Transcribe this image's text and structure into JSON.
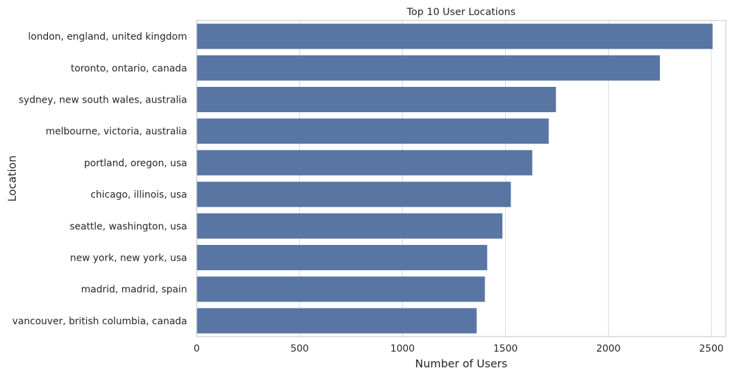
{
  "chart_data": {
    "type": "bar",
    "orientation": "horizontal",
    "title": "Top 10 User Locations",
    "xlabel": "Number of Users",
    "ylabel": "Location",
    "xlim": [
      0,
      2570
    ],
    "xticks": [
      0,
      500,
      1000,
      1500,
      2000,
      2500
    ],
    "grid": true,
    "bar_color": "#5875a4",
    "categories": [
      "london, england, united kingdom",
      "toronto, ontario, canada",
      "sydney, new south wales, australia",
      "melbourne, victoria, australia",
      "portland, oregon, usa",
      "chicago, illinois, usa",
      "seattle, washington, usa",
      "new york, new york, usa",
      "madrid, madrid, spain",
      "vancouver, british columbia, canada"
    ],
    "values": [
      2506,
      2250,
      1745,
      1710,
      1630,
      1526,
      1485,
      1411,
      1400,
      1360
    ]
  }
}
